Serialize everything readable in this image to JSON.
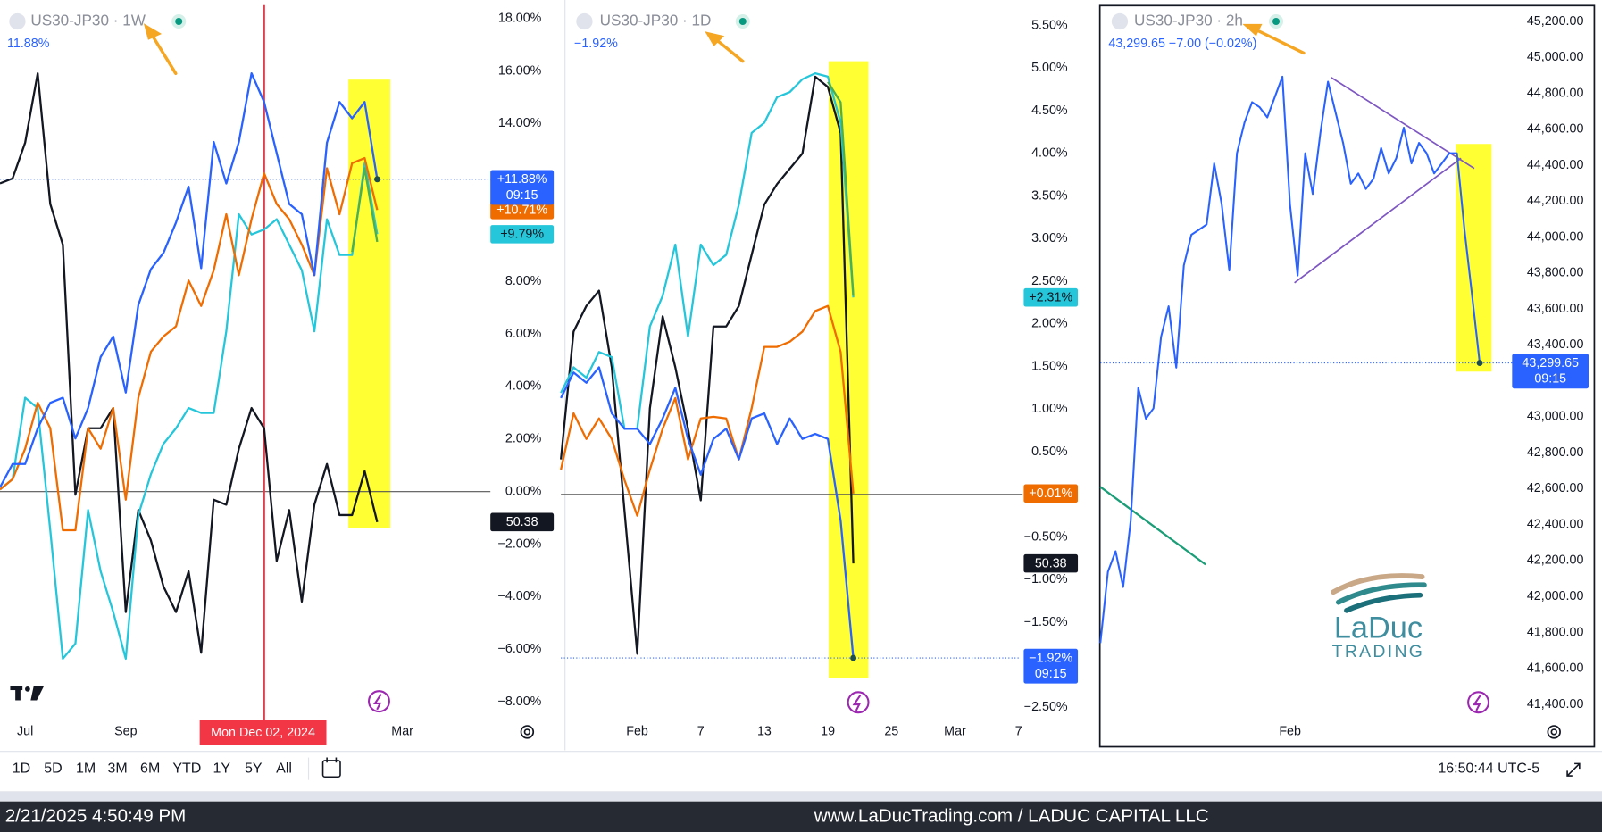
{
  "chart_data": [
    {
      "type": "line",
      "title": "US30-JP30 · 1W",
      "subtitle": "11.88%",
      "categories": [
        null,
        null,
        "Jul",
        null,
        null,
        null,
        null,
        null,
        null,
        null,
        "Sep",
        null,
        null,
        null,
        null,
        null,
        null,
        null,
        null,
        null,
        null,
        null,
        null,
        null,
        null,
        null,
        null,
        null,
        null,
        null,
        null,
        null,
        "Mar",
        null,
        null,
        null,
        null,
        null,
        null,
        null
      ],
      "ylim": [
        -8.6,
        18.7
      ],
      "yticks": [
        {
          "value": 18,
          "label": "18.00%"
        },
        {
          "value": 16,
          "label": "16.00%"
        },
        {
          "value": 14,
          "label": "14.00%"
        },
        {
          "value": 8,
          "label": "8.00%"
        },
        {
          "value": 6,
          "label": "6.00%"
        },
        {
          "value": 4,
          "label": "4.00%"
        },
        {
          "value": 2,
          "label": "2.00%"
        },
        {
          "value": 0,
          "label": "0.00%"
        },
        {
          "value": -2,
          "label": "−2.00%"
        },
        {
          "value": -4,
          "label": "−4.00%"
        },
        {
          "value": -6,
          "label": "−6.00%"
        },
        {
          "value": -8,
          "label": "−8.00%"
        }
      ],
      "zero_line": true,
      "crosshair_category": 21,
      "crosshair_label": "Mon Dec 02, 2024",
      "series": [
        {
          "color": "#131722",
          "last_label": "50.38",
          "values": [
            11.72,
            11.91,
            13.27,
            15.91,
            10.94,
            9.39,
            -0.12,
            2.41,
            2.41,
            3.18,
            -4.58,
            -0.7,
            -1.86,
            -3.61,
            -4.58,
            -3.03,
            -6.13,
            -0.31,
            -0.5,
            1.63,
            3.18,
            2.41,
            -2.64,
            -0.7,
            -4.19,
            -0.5,
            1.05,
            -0.89,
            -0.89,
            0.78,
            -1.16,
            null,
            null,
            null,
            null,
            null,
            null,
            null,
            null,
            null
          ]
        },
        {
          "color": "#26c6da",
          "last_label": "+9.79%",
          "values": [
            0.08,
            0.47,
            3.57,
            3.18,
            -1.47,
            -6.36,
            -5.78,
            -0.7,
            -3.03,
            -4.58,
            -6.36,
            -0.89,
            0.66,
            1.82,
            2.41,
            3.18,
            2.99,
            2.99,
            6.1,
            10.55,
            9.78,
            9.97,
            10.36,
            9.39,
            8.42,
            6.1,
            10.36,
            9.0,
            9.0,
            12.49,
            9.79,
            null,
            null,
            null,
            null,
            null,
            null,
            null,
            null,
            null
          ]
        },
        {
          "color": "#ef6c00",
          "last_label": "+10.71%",
          "values": [
            0.08,
            0.47,
            1.63,
            3.38,
            2.41,
            -1.47,
            -1.47,
            2.41,
            1.63,
            3.18,
            -0.31,
            3.57,
            5.32,
            5.9,
            6.29,
            8.03,
            7.06,
            8.42,
            10.55,
            8.23,
            10.36,
            12.11,
            10.94,
            10.36,
            9.39,
            8.23,
            12.3,
            10.55,
            12.49,
            12.69,
            10.71,
            null,
            null,
            null,
            null,
            null,
            null,
            null,
            null,
            null
          ]
        },
        {
          "color": "#4caf50",
          "values": [
            null,
            null,
            null,
            null,
            null,
            null,
            null,
            null,
            null,
            null,
            null,
            null,
            null,
            null,
            null,
            null,
            null,
            null,
            null,
            null,
            null,
            null,
            null,
            null,
            null,
            null,
            null,
            null,
            9.12,
            12.3,
            9.5,
            null,
            null,
            null,
            null,
            null,
            null,
            null,
            null,
            null
          ]
        },
        {
          "color": "#2962ff",
          "last_label": "+11.88%",
          "last_label_time": "09:15",
          "price_line": true,
          "values": [
            0.16,
            1.05,
            1.05,
            2.41,
            3.38,
            3.57,
            2.02,
            3.18,
            5.12,
            5.9,
            3.77,
            7.1,
            8.46,
            9.08,
            10.24,
            11.6,
            8.5,
            13.3,
            11.72,
            13.3,
            15.91,
            14.82,
            12.88,
            10.94,
            10.55,
            8.23,
            13.27,
            14.82,
            14.2,
            14.82,
            11.88,
            null,
            null,
            null,
            null,
            null,
            null,
            null,
            null,
            null
          ]
        }
      ]
    },
    {
      "type": "line",
      "title": "US30-JP30 · 1D",
      "subtitle": "−1.92%",
      "categories": [
        null,
        null,
        null,
        null,
        null,
        null,
        "Feb",
        null,
        null,
        null,
        null,
        "7",
        null,
        null,
        null,
        null,
        "13",
        null,
        null,
        null,
        null,
        "19",
        null,
        null,
        null,
        null,
        "25",
        null,
        null,
        null,
        null,
        "Mar",
        null,
        null,
        null,
        null,
        "7"
      ],
      "ylim": [
        -2.62,
        5.8
      ],
      "yticks": [
        {
          "value": 5.5,
          "label": "5.50%"
        },
        {
          "value": 5,
          "label": "5.00%"
        },
        {
          "value": 4.5,
          "label": "4.50%"
        },
        {
          "value": 4,
          "label": "4.00%"
        },
        {
          "value": 3.5,
          "label": "3.50%"
        },
        {
          "value": 3,
          "label": "3.00%"
        },
        {
          "value": 2.5,
          "label": "2.50%"
        },
        {
          "value": 2,
          "label": "2.00%"
        },
        {
          "value": 1.5,
          "label": "1.50%"
        },
        {
          "value": 1,
          "label": "1.00%"
        },
        {
          "value": 0.5,
          "label": "0.50%"
        },
        {
          "value": -0.5,
          "label": "−0.50%"
        },
        {
          "value": -1,
          "label": "−1.00%"
        },
        {
          "value": -1.5,
          "label": "−1.50%"
        },
        {
          "value": -2.5,
          "label": "−2.50%"
        }
      ],
      "zero_line": true,
      "series": [
        {
          "color": "#131722",
          "last_label": "50.38",
          "values": [
            0.41,
            1.91,
            2.21,
            2.39,
            1.49,
            -0.19,
            -1.87,
            1.01,
            2.09,
            1.49,
            0.77,
            -0.07,
            1.97,
            1.97,
            2.21,
            2.81,
            3.4,
            3.64,
            3.82,
            4.0,
            4.9,
            4.78,
            4.24,
            -0.81,
            null,
            null,
            null,
            null,
            null,
            null,
            null,
            null,
            null,
            null,
            null,
            null,
            null
          ]
        },
        {
          "color": "#26c6da",
          "last_label": "+2.31%",
          "values": [
            1.19,
            1.49,
            1.37,
            1.67,
            1.61,
            0.77,
            0.77,
            1.97,
            2.33,
            2.93,
            1.85,
            2.93,
            2.69,
            2.81,
            3.4,
            4.24,
            4.36,
            4.66,
            4.72,
            4.87,
            4.94,
            4.9,
            4.36,
            2.31,
            null,
            null,
            null,
            null,
            null,
            null,
            null,
            null,
            null,
            null,
            null,
            null,
            null
          ]
        },
        {
          "color": "#ef6c00",
          "last_label": "+0.01%",
          "values": [
            0.29,
            0.95,
            0.65,
            0.89,
            0.65,
            0.17,
            -0.25,
            0.29,
            0.77,
            1.13,
            0.41,
            0.89,
            0.91,
            0.89,
            0.41,
            1.01,
            1.73,
            1.73,
            1.79,
            1.91,
            2.15,
            2.21,
            1.67,
            0.01,
            null,
            null,
            null,
            null,
            null,
            null,
            null,
            null,
            null,
            null,
            null,
            null,
            null
          ]
        },
        {
          "color": "#4caf50",
          "values": [
            null,
            null,
            null,
            null,
            null,
            null,
            null,
            null,
            null,
            null,
            null,
            null,
            null,
            null,
            null,
            null,
            null,
            null,
            null,
            null,
            null,
            4.84,
            4.6,
            2.33,
            null,
            null,
            null,
            null,
            null,
            null,
            null,
            null,
            null,
            null,
            null,
            null,
            null
          ]
        },
        {
          "color": "#2962ff",
          "last_label": "−1.92%",
          "last_label_time": "09:15",
          "price_line": true,
          "values": [
            1.13,
            1.43,
            1.31,
            1.49,
            0.95,
            0.77,
            0.77,
            0.59,
            0.89,
            1.25,
            0.65,
            0.23,
            0.65,
            0.77,
            0.41,
            0.89,
            0.95,
            0.59,
            0.89,
            0.65,
            0.71,
            0.65,
            -0.31,
            -1.92,
            null,
            null,
            null,
            null,
            null,
            null,
            null,
            null,
            null,
            null,
            null,
            null,
            null
          ]
        }
      ]
    },
    {
      "type": "line",
      "title": "US30-JP30 · 2h",
      "subtitle": "43,299.65 −7.00 (−0.02%)",
      "categories": [
        null,
        null,
        null,
        null,
        null,
        null,
        null,
        null,
        null,
        null,
        null,
        null,
        null,
        null,
        null,
        null,
        null,
        null,
        null,
        null,
        null,
        null,
        null,
        null,
        null,
        "Feb",
        null,
        null,
        null,
        null,
        null,
        null,
        null,
        null,
        null,
        null,
        null,
        null,
        null,
        null,
        null,
        null,
        null,
        null,
        null,
        null,
        null,
        null,
        null,
        null,
        null,
        null,
        null,
        null,
        null
      ],
      "ylim": [
        41326,
        45291
      ],
      "yticks": [
        {
          "value": 45200,
          "label": "45,200.00"
        },
        {
          "value": 45000,
          "label": "45,000.00"
        },
        {
          "value": 44800,
          "label": "44,800.00"
        },
        {
          "value": 44600,
          "label": "44,600.00"
        },
        {
          "value": 44400,
          "label": "44,400.00"
        },
        {
          "value": 44200,
          "label": "44,200.00"
        },
        {
          "value": 44000,
          "label": "44,000.00"
        },
        {
          "value": 43800,
          "label": "43,800.00"
        },
        {
          "value": 43600,
          "label": "43,600.00"
        },
        {
          "value": 43400,
          "label": "43,400.00"
        },
        {
          "value": 43000,
          "label": "43,000.00"
        },
        {
          "value": 42800,
          "label": "42,800.00"
        },
        {
          "value": 42600,
          "label": "42,600.00"
        },
        {
          "value": 42400,
          "label": "42,400.00"
        },
        {
          "value": 42200,
          "label": "42,200.00"
        },
        {
          "value": 42000,
          "label": "42,000.00"
        },
        {
          "value": 41800,
          "label": "41,800.00"
        },
        {
          "value": 41600,
          "label": "41,600.00"
        },
        {
          "value": 41400,
          "label": "41,400.00"
        }
      ],
      "zero_line": false,
      "series": [
        {
          "color": "#2962ff",
          "last_label": "43,299.65",
          "last_label_time": "09:15",
          "price_line": true,
          "values": [
            41741,
            42138,
            42252,
            42053,
            42422,
            43161,
            42990,
            43047,
            43445,
            43615,
            43274,
            43842,
            44013,
            44041,
            44070,
            44410,
            44183,
            43814,
            44467,
            44638,
            44751,
            44723,
            44666,
            44780,
            44893,
            44183,
            43786,
            44467,
            44240,
            44581,
            44865,
            44694,
            44524,
            44297,
            44354,
            44268,
            44325,
            44496,
            44354,
            44439,
            44609,
            44410,
            44524,
            44467,
            44354,
            44410,
            44467,
            44467,
            44041,
            43672,
            43299.65,
            null,
            null,
            null,
            null
          ]
        }
      ]
    }
  ],
  "toolbar": {
    "ranges": [
      "1D",
      "5D",
      "1M",
      "3M",
      "6M",
      "YTD",
      "1Y",
      "5Y",
      "All"
    ],
    "clock": "16:50:44 UTC-5"
  },
  "logo": {
    "name": "LaDuc",
    "tagline": "TRADING"
  },
  "footer": {
    "timestamp": "2/21/2025 4:50:49 PM",
    "site": "www.LaDucTrading.com / LADUC CAPITAL LLC"
  }
}
